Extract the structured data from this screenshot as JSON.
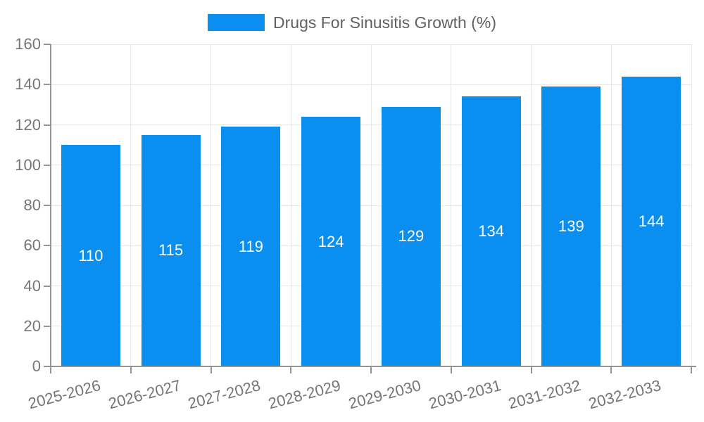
{
  "chart": {
    "legend": {
      "label": "Drugs For Sinusitis Growth (%)"
    }
  },
  "chart_data": {
    "type": "bar",
    "title": "Drugs For Sinusitis Growth (%)",
    "categories": [
      "2025-2026",
      "2026-2027",
      "2027-2028",
      "2028-2029",
      "2029-2030",
      "2030-2031",
      "2031-2032",
      "2032-2033"
    ],
    "values": [
      110,
      115,
      119,
      124,
      129,
      134,
      139,
      144
    ],
    "xlabel": "",
    "ylabel": "",
    "ylim": [
      0,
      160
    ],
    "yticks": [
      0,
      20,
      40,
      60,
      80,
      100,
      120,
      140,
      160
    ],
    "grid": true,
    "legend_position": "top",
    "x_tick_rotation_deg": -15,
    "value_labels_inside_bars": true
  },
  "colors": {
    "bar": "#0a8ff0",
    "gridline": "#e6e6e6",
    "axis_line": "#949494",
    "tick": "#949494",
    "axis_text": "#757575",
    "legend_text": "#616161",
    "value_label": "#ffffff",
    "background": "#ffffff"
  }
}
